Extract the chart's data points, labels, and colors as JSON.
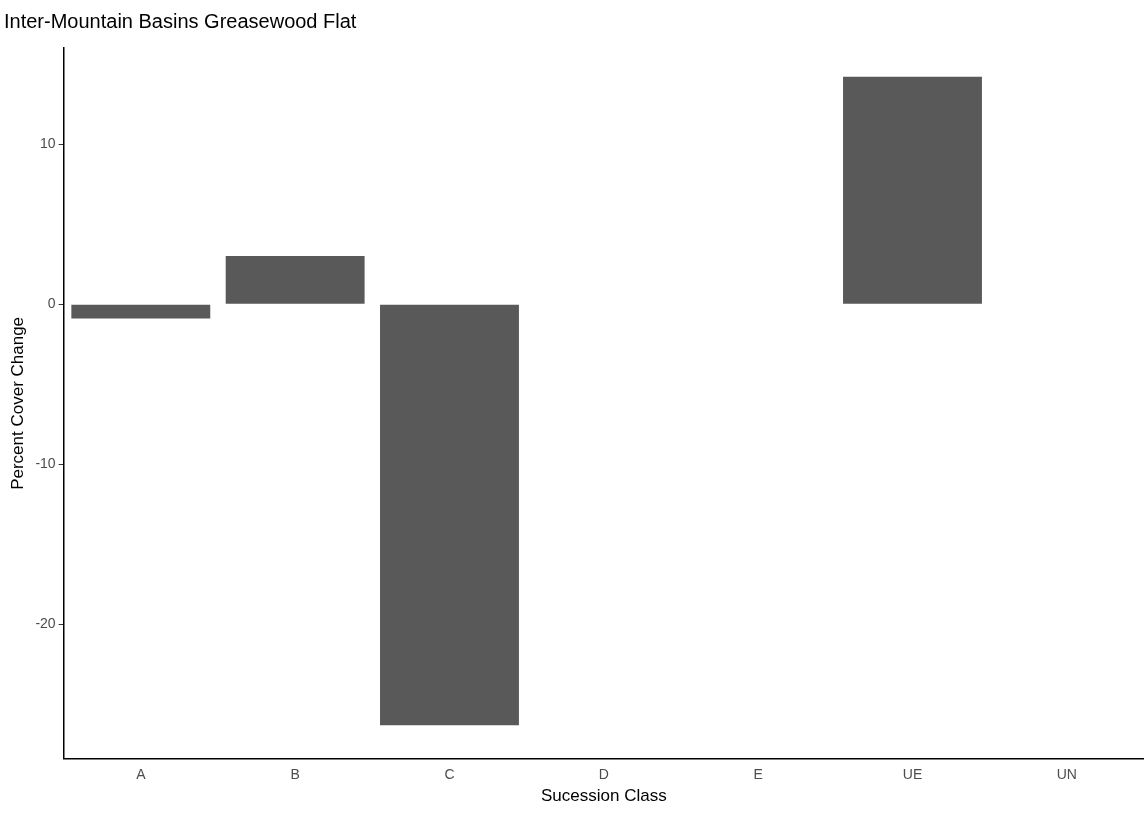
{
  "chart_data": {
    "type": "bar",
    "title": "Inter-Mountain Basins Greasewood Flat",
    "xlabel": "Sucession Class",
    "ylabel": "Percent Cover Change",
    "categories": [
      "A",
      "B",
      "C",
      "D",
      "E",
      "UE",
      "UN"
    ],
    "values": [
      -0.9,
      3.0,
      -26.3,
      0,
      0,
      14.2,
      0
    ],
    "color": "#595959",
    "ylim": [
      -28.4,
      16
    ],
    "yticks": [
      -20,
      -10,
      0,
      10
    ]
  }
}
